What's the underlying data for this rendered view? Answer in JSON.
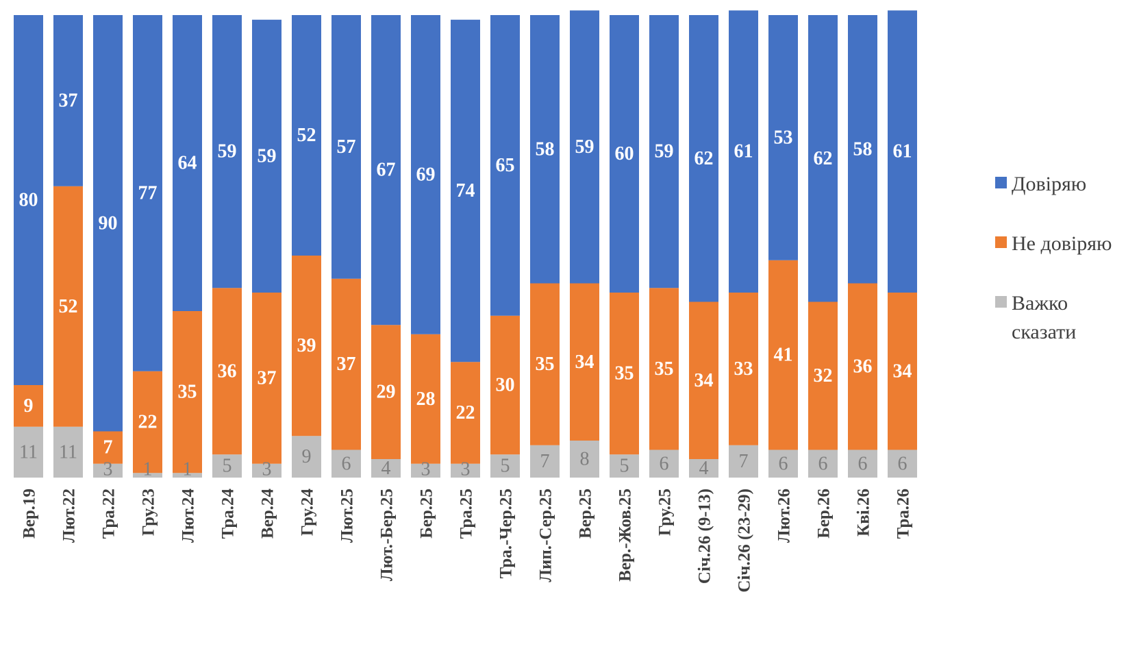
{
  "chart_data": {
    "type": "bar",
    "stacked": true,
    "orientation": "vertical",
    "percent_stacked": true,
    "categories": [
      "Вер.19",
      "Лют.22",
      "Тра.22",
      "Гру.23",
      "Лют.24",
      "Тра.24",
      "Вер.24",
      "Гру.24",
      "Лют.25",
      "Лют.-Бер.25",
      "Бер.25",
      "Тра.25",
      "Тра.-Чер.25",
      "Лип.-Сер.25",
      "Вер.25",
      "Вер.-Жов.25",
      "Гру.25",
      "Січ.26 (9-13)",
      "Січ.26 (23-29)",
      "Лют.26",
      "Бер.26",
      "Кві.26",
      "Тра.26"
    ],
    "series": [
      {
        "name": "Важко сказати",
        "color": "#bfbfbf",
        "label_color": "#7f7f7f",
        "values": [
          11,
          11,
          3,
          1,
          1,
          5,
          3,
          9,
          6,
          4,
          3,
          3,
          5,
          7,
          8,
          5,
          6,
          4,
          7,
          6,
          6,
          6,
          6
        ]
      },
      {
        "name": "Не довіряю",
        "color": "#ed7d31",
        "label_color": "#ffffff",
        "values": [
          9,
          52,
          7,
          22,
          35,
          36,
          37,
          39,
          37,
          29,
          28,
          22,
          30,
          35,
          34,
          35,
          35,
          34,
          33,
          41,
          32,
          36,
          34
        ]
      },
      {
        "name": "Довіряю",
        "color": "#4472c4",
        "label_color": "#ffffff",
        "values": [
          80,
          37,
          90,
          77,
          64,
          59,
          59,
          52,
          57,
          67,
          69,
          74,
          65,
          58,
          59,
          60,
          59,
          62,
          61,
          53,
          62,
          58,
          61
        ]
      }
    ],
    "legend_order": [
      "Довіряю",
      "Не довіряю",
      "Важко сказати"
    ],
    "legend_position": "right",
    "ylim": [
      0,
      100
    ],
    "title": "",
    "xlabel": "",
    "ylabel": ""
  }
}
